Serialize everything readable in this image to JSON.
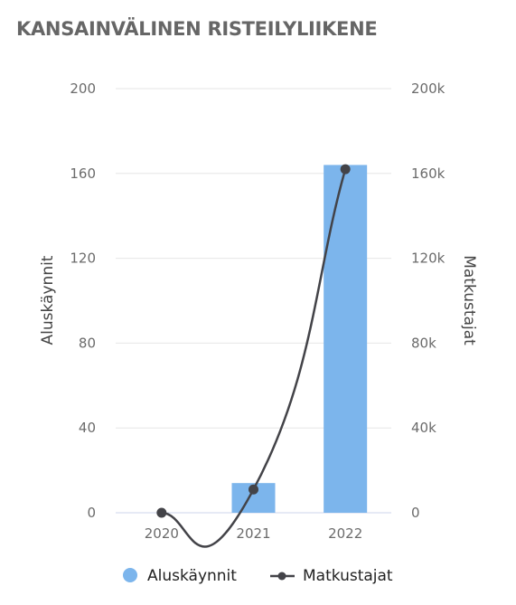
{
  "chart_data": {
    "type": "bar",
    "title": "KANSAINVÄLINEN RISTEILYLIIKENE",
    "categories": [
      "2020",
      "2021",
      "2022"
    ],
    "series": [
      {
        "name": "Aluskäynnit",
        "type": "bar",
        "axis": "left",
        "values": [
          0,
          14,
          164
        ],
        "color": "#7cb5ec"
      },
      {
        "name": "Matkustajat",
        "type": "line",
        "axis": "right",
        "values": [
          0,
          11000,
          162000
        ],
        "color": "#434348"
      }
    ],
    "y_left": {
      "label": "Aluskäynnit",
      "ylim": [
        0,
        200
      ],
      "ticks": [
        0,
        40,
        80,
        120,
        160,
        200
      ]
    },
    "y_right": {
      "label": "Matkustajat",
      "ylim": [
        0,
        200000
      ],
      "ticks": [
        "0",
        "40k",
        "80k",
        "120k",
        "160k",
        "200k"
      ]
    },
    "grid": true,
    "legend": "bottom"
  }
}
